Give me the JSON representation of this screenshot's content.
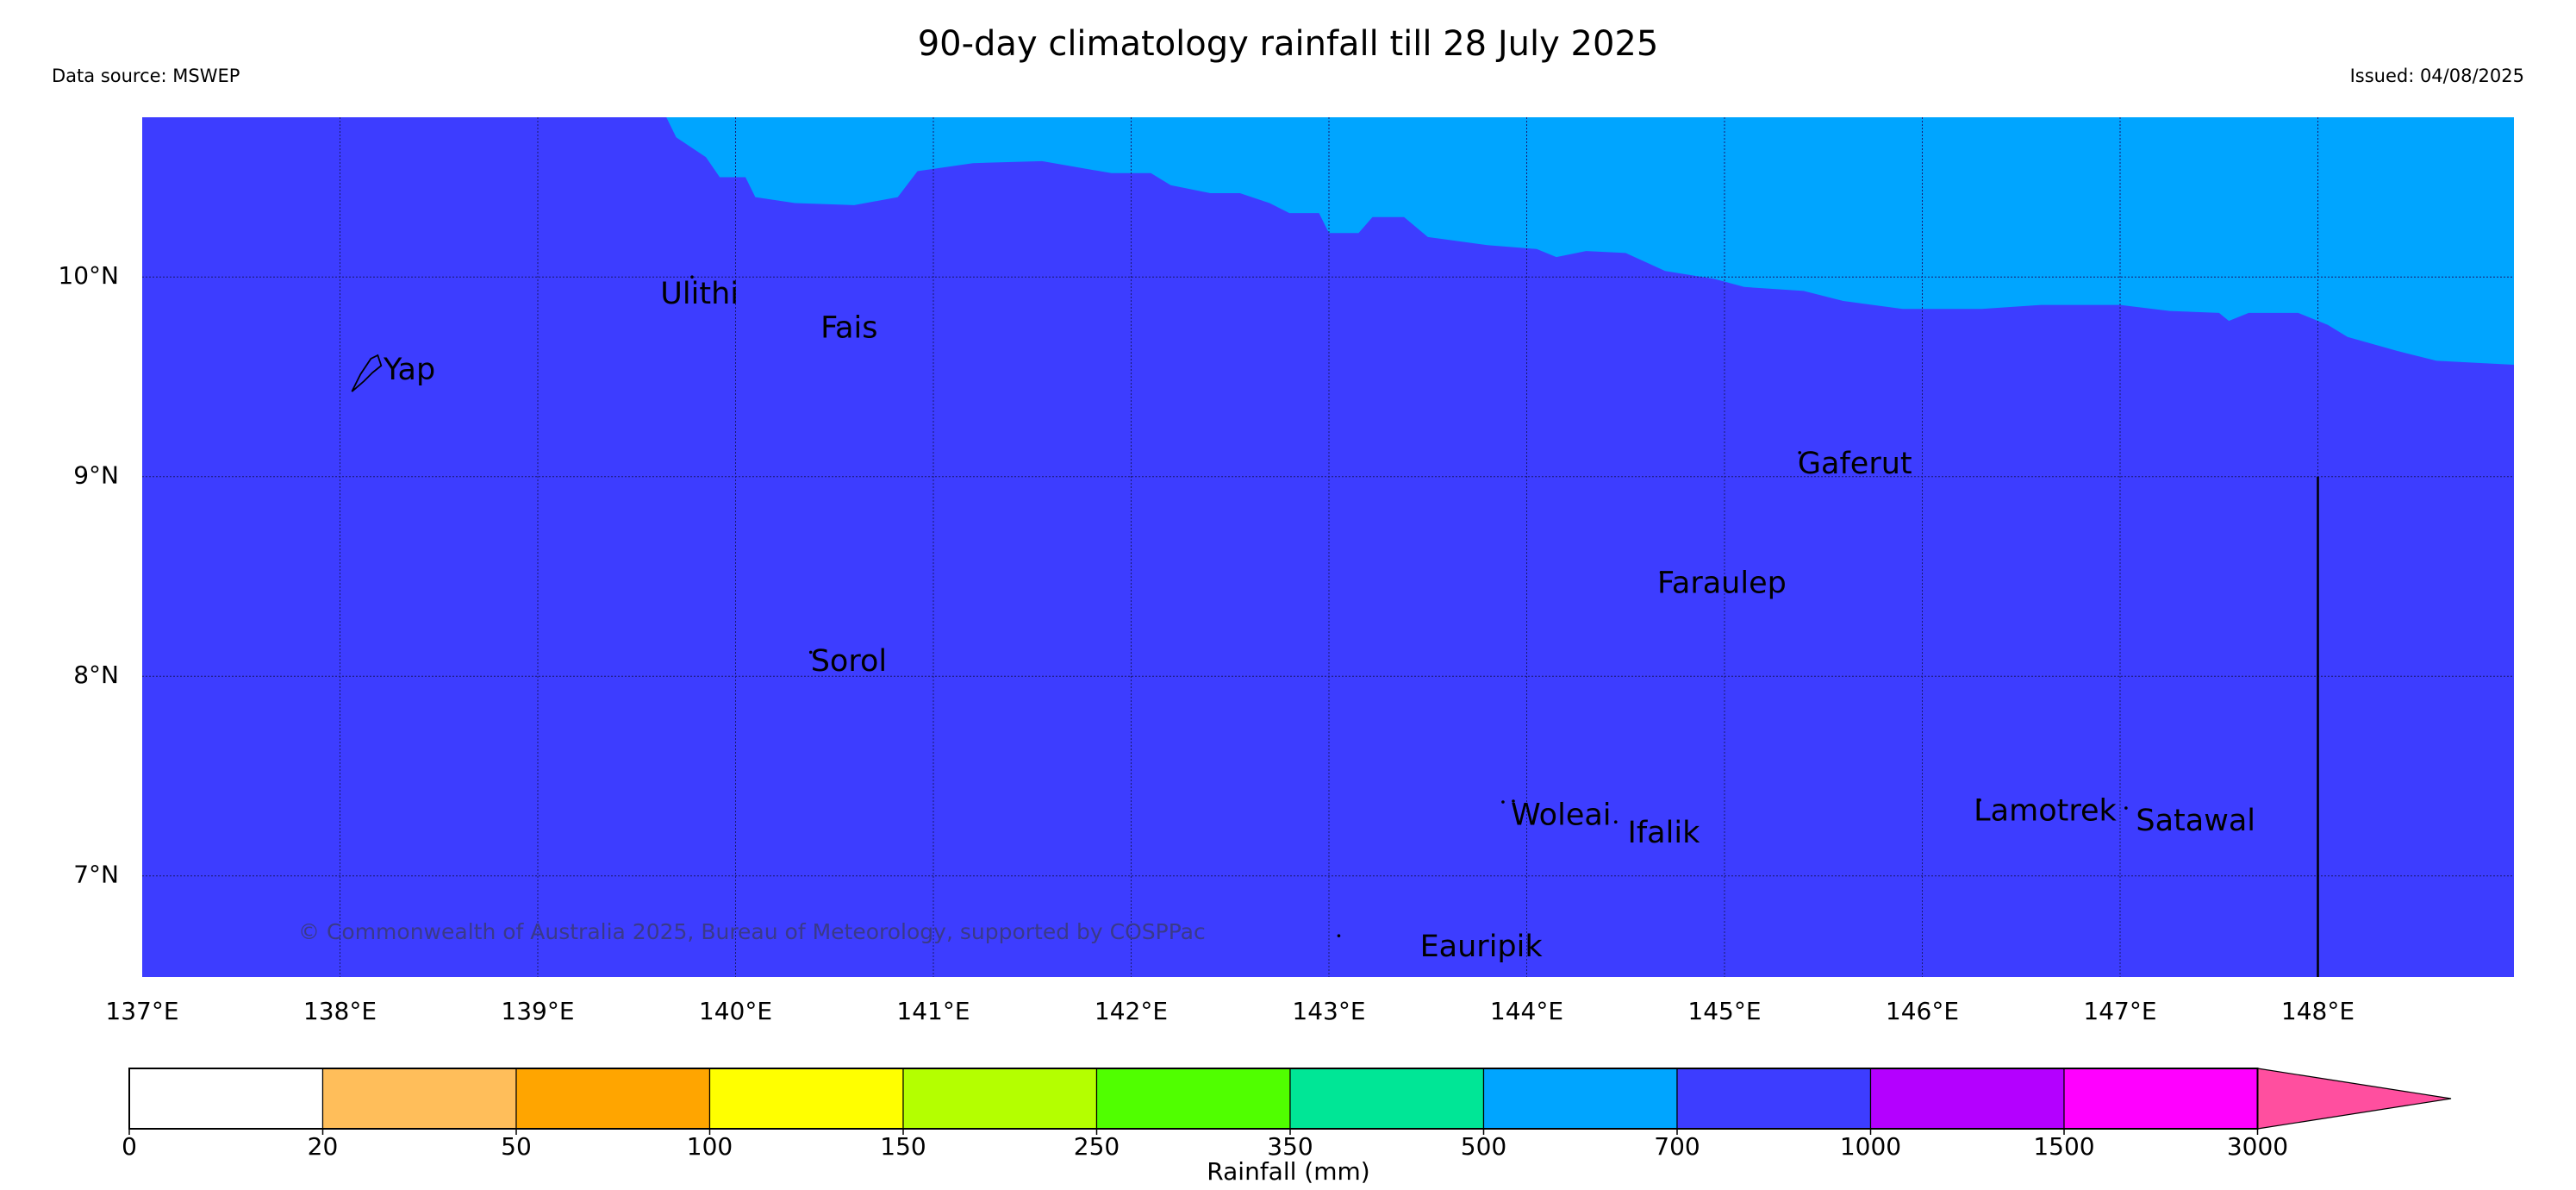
{
  "header": {
    "title": "90-day climatology rainfall till 28 July 2025",
    "data_source": "Data source: MSWEP",
    "issued": "Issued: 04/08/2025"
  },
  "map": {
    "extent": {
      "lon_min": 137.0,
      "lon_max": 149.0,
      "lat_min": 6.5,
      "lat_max": 10.8
    },
    "background_color": "#3d3dff",
    "upper_band_color": "#00a5ff",
    "latitude_labels": [
      {
        "value": 10,
        "text": "10°N"
      },
      {
        "value": 9,
        "text": "9°N"
      },
      {
        "value": 8,
        "text": "8°N"
      },
      {
        "value": 7,
        "text": "7°N"
      }
    ],
    "longitude_labels": [
      {
        "value": 137,
        "text": "137°E"
      },
      {
        "value": 138,
        "text": "138°E"
      },
      {
        "value": 139,
        "text": "139°E"
      },
      {
        "value": 140,
        "text": "140°E"
      },
      {
        "value": 141,
        "text": "141°E"
      },
      {
        "value": 142,
        "text": "142°E"
      },
      {
        "value": 143,
        "text": "143°E"
      },
      {
        "value": 144,
        "text": "144°E"
      },
      {
        "value": 145,
        "text": "145°E"
      },
      {
        "value": 146,
        "text": "146°E"
      },
      {
        "value": 147,
        "text": "147°E"
      },
      {
        "value": 148,
        "text": "148°E"
      }
    ],
    "band_boundary": [
      [
        139.65,
        10.8
      ],
      [
        139.7,
        10.7
      ],
      [
        139.85,
        10.6
      ],
      [
        139.92,
        10.5
      ],
      [
        140.05,
        10.5
      ],
      [
        140.1,
        10.4
      ],
      [
        140.3,
        10.37
      ],
      [
        140.6,
        10.36
      ],
      [
        140.82,
        10.4
      ],
      [
        140.92,
        10.53
      ],
      [
        141.2,
        10.57
      ],
      [
        141.55,
        10.58
      ],
      [
        141.9,
        10.52
      ],
      [
        142.1,
        10.52
      ],
      [
        142.2,
        10.46
      ],
      [
        142.4,
        10.42
      ],
      [
        142.55,
        10.42
      ],
      [
        142.7,
        10.37
      ],
      [
        142.8,
        10.32
      ],
      [
        142.95,
        10.32
      ],
      [
        143.0,
        10.22
      ],
      [
        143.15,
        10.22
      ],
      [
        143.22,
        10.3
      ],
      [
        143.38,
        10.3
      ],
      [
        143.5,
        10.2
      ],
      [
        143.8,
        10.16
      ],
      [
        144.05,
        10.14
      ],
      [
        144.15,
        10.1
      ],
      [
        144.3,
        10.13
      ],
      [
        144.5,
        10.12
      ],
      [
        144.7,
        10.03
      ],
      [
        144.95,
        9.99
      ],
      [
        145.1,
        9.95
      ],
      [
        145.4,
        9.93
      ],
      [
        145.6,
        9.88
      ],
      [
        145.9,
        9.84
      ],
      [
        146.3,
        9.84
      ],
      [
        146.6,
        9.86
      ],
      [
        147.0,
        9.86
      ],
      [
        147.25,
        9.83
      ],
      [
        147.5,
        9.82
      ],
      [
        147.55,
        9.78
      ],
      [
        147.65,
        9.82
      ],
      [
        147.9,
        9.82
      ],
      [
        148.05,
        9.76
      ],
      [
        148.15,
        9.7
      ],
      [
        148.4,
        9.63
      ],
      [
        148.6,
        9.58
      ],
      [
        148.8,
        9.57
      ],
      [
        149.0,
        9.56
      ]
    ],
    "places": [
      {
        "name": "Yap",
        "lon": 138.22,
        "lat": 9.53,
        "anchor_lon": 138.15,
        "anchor_lat": 9.58
      },
      {
        "name": "Ulithi",
        "lon": 139.62,
        "lat": 9.91,
        "anchor_lon": 139.78,
        "anchor_lat": 10.0
      },
      {
        "name": "Fais",
        "lon": 140.43,
        "lat": 9.74,
        "anchor_lon": 140.52,
        "anchor_lat": 9.76
      },
      {
        "name": "Gaferut",
        "lon": 145.37,
        "lat": 9.06,
        "anchor_lon": 145.38,
        "anchor_lat": 9.12
      },
      {
        "name": "Faraulep",
        "lon": 144.66,
        "lat": 8.46,
        "anchor_lon": 144.68,
        "anchor_lat": 8.52
      },
      {
        "name": "Sorol",
        "lon": 140.38,
        "lat": 8.07,
        "anchor_lon": 140.38,
        "anchor_lat": 8.12
      },
      {
        "name": "Woleai",
        "lon": 143.92,
        "lat": 7.3,
        "anchor_lon": 143.88,
        "anchor_lat": 7.37
      },
      {
        "name": "Ifalik",
        "lon": 144.51,
        "lat": 7.21,
        "anchor_lon": 144.45,
        "anchor_lat": 7.27
      },
      {
        "name": "Lamotrek",
        "lon": 146.26,
        "lat": 7.32,
        "anchor_lon": 146.29,
        "anchor_lat": 7.38
      },
      {
        "name": "Satawal",
        "lon": 147.08,
        "lat": 7.27,
        "anchor_lon": 147.03,
        "anchor_lat": 7.34
      },
      {
        "name": "Eauripik",
        "lon": 143.46,
        "lat": 6.64,
        "anchor_lon": 143.05,
        "anchor_lat": 6.7
      }
    ],
    "copyright": "© Commonwealth of Australia 2025, Bureau of Meteorology, supported by COSPPac"
  },
  "colorbar": {
    "title": "Rainfall (mm)",
    "ticks": [
      "0",
      "20",
      "50",
      "100",
      "150",
      "250",
      "350",
      "500",
      "700",
      "1000",
      "1500",
      "3000"
    ],
    "colors": [
      "#ffffff",
      "#ffbe5a",
      "#ffa500",
      "#ffff00",
      "#b4ff00",
      "#50ff00",
      "#00e696",
      "#00a5ff",
      "#3d3dff",
      "#b400ff",
      "#ff00ff"
    ],
    "extend_color": "#ff4f9f"
  }
}
